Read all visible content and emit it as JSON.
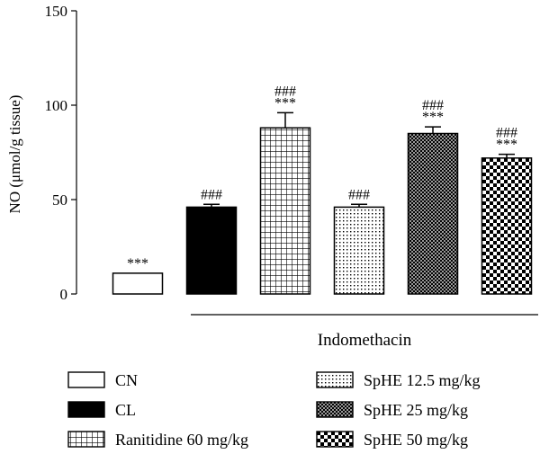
{
  "chart_data": {
    "type": "bar",
    "ylabel": "NO (μmol/g tissue)",
    "ylim": [
      0,
      150
    ],
    "yticks": [
      0,
      50,
      100,
      150
    ],
    "categories": [
      "CN",
      "CL",
      "Ranitidine 60 mg/kg",
      "SpHE 12.5 mg/kg",
      "SpHE 25 mg/kg",
      "SpHE 50 mg/kg"
    ],
    "values": [
      11,
      46,
      88,
      46,
      85,
      72
    ],
    "errors": [
      0,
      1.5,
      8,
      1.5,
      3.5,
      2
    ],
    "annotations": [
      [
        "***"
      ],
      [
        "###"
      ],
      [
        "###",
        "***"
      ],
      [
        "###"
      ],
      [
        "###",
        "***"
      ],
      [
        "###",
        "***"
      ]
    ],
    "patterns": [
      "white",
      "black",
      "grid",
      "dots",
      "crosshatch",
      "checker"
    ],
    "group_label": "Indomethacin",
    "group_range": [
      1,
      5
    ]
  }
}
